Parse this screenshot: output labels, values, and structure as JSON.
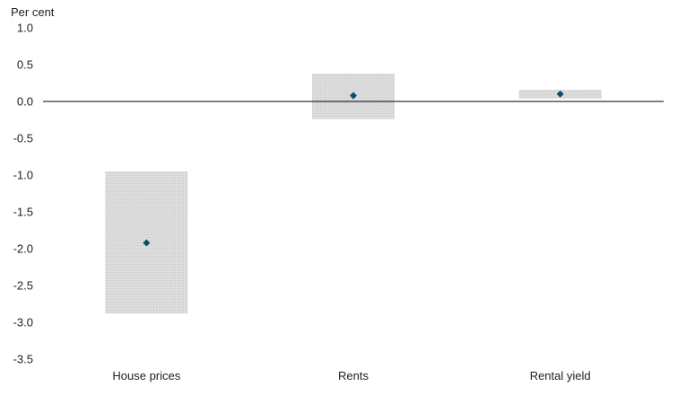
{
  "chart_data": {
    "type": "range-bar",
    "y_unit_label": "Per cent",
    "ylim": [
      -3.5,
      1.0
    ],
    "y_ticks": [
      1.0,
      0.5,
      0.0,
      -0.5,
      -1.0,
      -1.5,
      -2.0,
      -2.5,
      -3.0,
      -3.5
    ],
    "y_tick_labels": [
      "1.0",
      "0.5",
      "0.0",
      "-0.5",
      "-1.0",
      "-1.5",
      "-2.0",
      "-2.5",
      "-3.0",
      "-3.5"
    ],
    "categories": [
      "House prices",
      "Rents",
      "Rental yield"
    ],
    "point_estimate": [
      -1.92,
      0.08,
      0.1
    ],
    "range_low": [
      -2.88,
      -0.24,
      0.04
    ],
    "range_high": [
      -0.95,
      0.38,
      0.16
    ],
    "grid": false,
    "legend": "none",
    "colors": {
      "range_fill": "#d9d9d9",
      "marker": "#0f4c6b",
      "zero_line": "#000000"
    }
  }
}
